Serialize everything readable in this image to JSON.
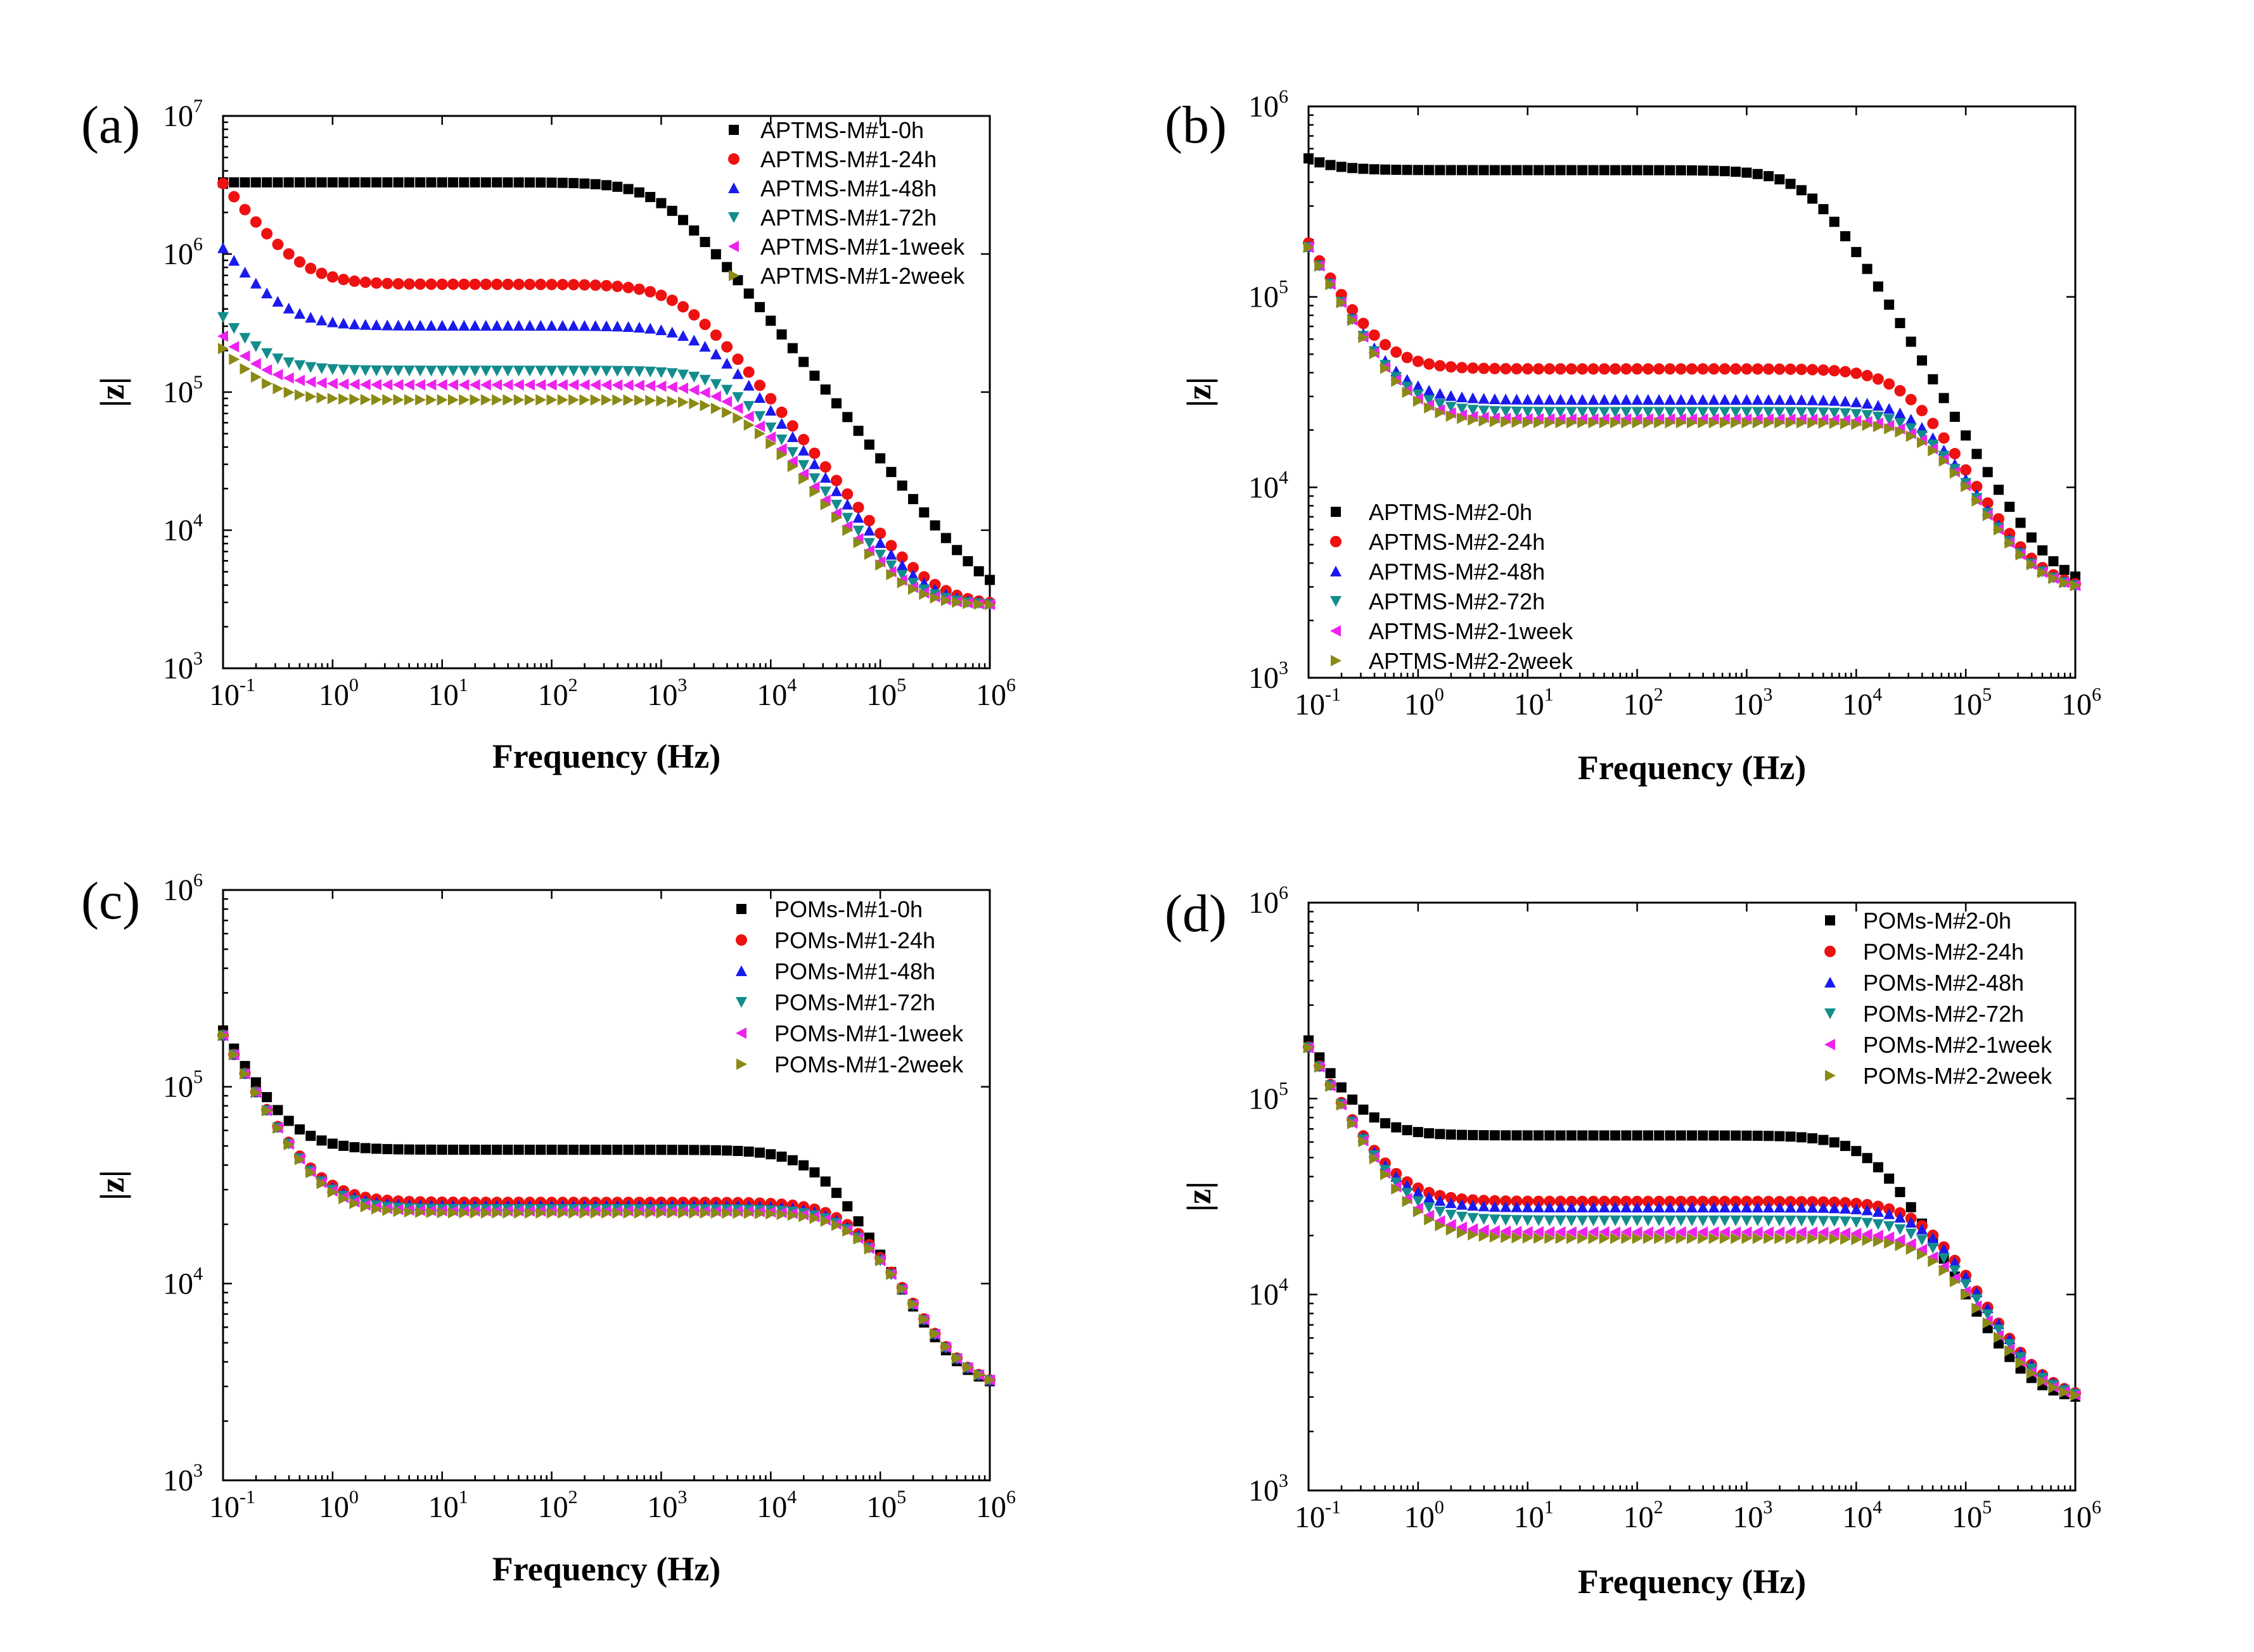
{
  "colors": {
    "0h": "#000000",
    "24h": "#ee1111",
    "48h": "#1a1aee",
    "72h": "#138c8c",
    "1week": "#ee22ee",
    "2week": "#8a8a14"
  },
  "chart_data": [
    {
      "type": "scatter",
      "panel": "(a)",
      "xlabel": "Frequency (Hz)",
      "ylabel": "|z|",
      "xscale": "log",
      "yscale": "log",
      "xlim": [
        0.1,
        1000000
      ],
      "ylim": [
        1000,
        10000000
      ],
      "x_ticks": [
        {
          "base": "10",
          "exp": "-1"
        },
        {
          "base": "10",
          "exp": "0"
        },
        {
          "base": "10",
          "exp": "1"
        },
        {
          "base": "10",
          "exp": "2"
        },
        {
          "base": "10",
          "exp": "3"
        },
        {
          "base": "10",
          "exp": "4"
        },
        {
          "base": "10",
          "exp": "5"
        },
        {
          "base": "10",
          "exp": "6"
        }
      ],
      "y_ticks": [
        {
          "base": "10",
          "exp": "3"
        },
        {
          "base": "10",
          "exp": "4"
        },
        {
          "base": "10",
          "exp": "5"
        },
        {
          "base": "10",
          "exp": "6"
        },
        {
          "base": "10",
          "exp": "7"
        }
      ],
      "legend_position": "top-right",
      "series": [
        {
          "name": "APTMS-M#1-0h",
          "key": "0h",
          "marker": "square",
          "R0": 0,
          "Rp": 3300000,
          "fc": 1000,
          "Cdl": 0
        },
        {
          "name": "APTMS-M#1-24h",
          "key": "24h",
          "marker": "circle",
          "R0": 0,
          "Rp": 600000,
          "fc": 1500,
          "Cdl": 5e-07
        },
        {
          "name": "APTMS-M#1-48h",
          "key": "48h",
          "marker": "triangle-up",
          "R0": 0,
          "Rp": 300000,
          "fc": 2500,
          "Cdl": 1.5e-06
        },
        {
          "name": "APTMS-M#1-72h",
          "key": "72h",
          "marker": "triangle-down",
          "R0": 0,
          "Rp": 140000,
          "fc": 4200,
          "Cdl": 5e-06
        },
        {
          "name": "APTMS-M#1-1week",
          "key": "1week",
          "marker": "triangle-left",
          "R0": 0,
          "Rp": 110000,
          "fc": 4600,
          "Cdl": 7e-06
        },
        {
          "name": "APTMS-M#1-2week",
          "key": "2week",
          "marker": "triangle-right",
          "R0": 0,
          "Rp": 85000,
          "fc": 5500,
          "Cdl": 8.5e-06
        }
      ]
    },
    {
      "type": "scatter",
      "panel": "(b)",
      "xlabel": "Frequency (Hz)",
      "ylabel": "|z|",
      "xscale": "log",
      "yscale": "log",
      "xlim": [
        0.1,
        1000000
      ],
      "ylim": [
        1000,
        1000000
      ],
      "x_ticks": [
        {
          "base": "10",
          "exp": "-1"
        },
        {
          "base": "10",
          "exp": "0"
        },
        {
          "base": "10",
          "exp": "1"
        },
        {
          "base": "10",
          "exp": "2"
        },
        {
          "base": "10",
          "exp": "3"
        },
        {
          "base": "10",
          "exp": "4"
        },
        {
          "base": "10",
          "exp": "5"
        },
        {
          "base": "10",
          "exp": "6"
        }
      ],
      "y_ticks": [
        {
          "base": "10",
          "exp": "3"
        },
        {
          "base": "10",
          "exp": "4"
        },
        {
          "base": "10",
          "exp": "5"
        },
        {
          "base": "10",
          "exp": "6"
        }
      ],
      "legend_position": "bottom-left",
      "series": [
        {
          "name": "APTMS-M#2-0h",
          "key": "0h",
          "marker": "square",
          "R0": 0,
          "Rp": 460000,
          "fc": 4000,
          "Cdl": 6e-06
        },
        {
          "name": "APTMS-M#2-24h",
          "key": "24h",
          "marker": "circle",
          "R0": 0,
          "Rp": 39000,
          "fc": 30000,
          "Cdl": 8.5e-06
        },
        {
          "name": "APTMS-M#2-48h",
          "key": "48h",
          "marker": "triangle-up",
          "R0": 0,
          "Rp": 26000,
          "fc": 40000,
          "Cdl": 8.8e-06
        },
        {
          "name": "APTMS-M#2-72h",
          "key": "72h",
          "marker": "triangle-down",
          "R0": 0,
          "Rp": 22000,
          "fc": 45000,
          "Cdl": 8.8e-06
        },
        {
          "name": "APTMS-M#2-1week",
          "key": "1week",
          "marker": "triangle-left",
          "R0": 0,
          "Rp": 20000,
          "fc": 48000,
          "Cdl": 8.8e-06
        },
        {
          "name": "APTMS-M#2-2week",
          "key": "2week",
          "marker": "triangle-right",
          "R0": 0,
          "Rp": 19000,
          "fc": 50000,
          "Cdl": 8.8e-06
        }
      ]
    },
    {
      "type": "scatter",
      "panel": "(c)",
      "xlabel": "Frequency (Hz)",
      "ylabel": "|z|",
      "xscale": "log",
      "yscale": "log",
      "xlim": [
        0.1,
        1000000
      ],
      "ylim": [
        1000,
        1000000
      ],
      "x_ticks": [
        {
          "base": "10",
          "exp": "-1"
        },
        {
          "base": "10",
          "exp": "0"
        },
        {
          "base": "10",
          "exp": "1"
        },
        {
          "base": "10",
          "exp": "2"
        },
        {
          "base": "10",
          "exp": "3"
        },
        {
          "base": "10",
          "exp": "4"
        },
        {
          "base": "10",
          "exp": "5"
        },
        {
          "base": "10",
          "exp": "6"
        }
      ],
      "y_ticks": [
        {
          "base": "10",
          "exp": "3"
        },
        {
          "base": "10",
          "exp": "4"
        },
        {
          "base": "10",
          "exp": "5"
        },
        {
          "base": "10",
          "exp": "6"
        }
      ],
      "legend_position": "top-right",
      "series": [
        {
          "name": "POMs-M#1-0h",
          "key": "0h",
          "marker": "square",
          "R0": 0,
          "Rp": 45000,
          "fc": 30000,
          "Cdl": 8.5e-06
        },
        {
          "name": "POMs-M#1-24h",
          "key": "24h",
          "marker": "circle",
          "R0": 0,
          "Rp": 23000,
          "fc": 60000,
          "Cdl": 8.8e-06
        },
        {
          "name": "POMs-M#1-48h",
          "key": "48h",
          "marker": "triangle-up",
          "R0": 0,
          "Rp": 22000,
          "fc": 62000,
          "Cdl": 8.8e-06
        },
        {
          "name": "POMs-M#1-72h",
          "key": "72h",
          "marker": "triangle-down",
          "R0": 0,
          "Rp": 21000,
          "fc": 64000,
          "Cdl": 8.8e-06
        },
        {
          "name": "POMs-M#1-1week",
          "key": "1week",
          "marker": "triangle-left",
          "R0": 0,
          "Rp": 20500,
          "fc": 66000,
          "Cdl": 8.8e-06
        },
        {
          "name": "POMs-M#1-2week",
          "key": "2week",
          "marker": "triangle-right",
          "R0": 0,
          "Rp": 20000,
          "fc": 68000,
          "Cdl": 8.8e-06
        }
      ]
    },
    {
      "type": "scatter",
      "panel": "(d)",
      "xlabel": "Frequency (Hz)",
      "ylabel": "|z|",
      "xscale": "log",
      "yscale": "log",
      "xlim": [
        0.1,
        1000000
      ],
      "ylim": [
        1000,
        1000000
      ],
      "x_ticks": [
        {
          "base": "10",
          "exp": "-1"
        },
        {
          "base": "10",
          "exp": "0"
        },
        {
          "base": "10",
          "exp": "1"
        },
        {
          "base": "10",
          "exp": "2"
        },
        {
          "base": "10",
          "exp": "3"
        },
        {
          "base": "10",
          "exp": "4"
        },
        {
          "base": "10",
          "exp": "5"
        },
        {
          "base": "10",
          "exp": "6"
        }
      ],
      "y_ticks": [
        {
          "base": "10",
          "exp": "3"
        },
        {
          "base": "10",
          "exp": "4"
        },
        {
          "base": "10",
          "exp": "5"
        },
        {
          "base": "10",
          "exp": "6"
        }
      ],
      "legend_position": "top-right",
      "series": [
        {
          "name": "POMs-M#2-0h",
          "key": "0h",
          "marker": "square",
          "R0": 0,
          "Rp": 62000,
          "fc": 15000,
          "Cdl": 8.5e-06
        },
        {
          "name": "POMs-M#2-24h",
          "key": "24h",
          "marker": "circle",
          "R0": 0,
          "Rp": 27000,
          "fc": 45000,
          "Cdl": 8.8e-06
        },
        {
          "name": "POMs-M#2-48h",
          "key": "48h",
          "marker": "triangle-up",
          "R0": 0,
          "Rp": 25000,
          "fc": 48000,
          "Cdl": 8.8e-06
        },
        {
          "name": "POMs-M#2-72h",
          "key": "72h",
          "marker": "triangle-down",
          "R0": 0,
          "Rp": 21000,
          "fc": 52000,
          "Cdl": 8.8e-06
        },
        {
          "name": "POMs-M#2-1week",
          "key": "1week",
          "marker": "triangle-left",
          "R0": 0,
          "Rp": 18000,
          "fc": 55000,
          "Cdl": 8.8e-06
        },
        {
          "name": "POMs-M#2-2week",
          "key": "2week",
          "marker": "triangle-right",
          "R0": 0,
          "Rp": 16500,
          "fc": 58000,
          "Cdl": 8.8e-06
        }
      ]
    }
  ]
}
